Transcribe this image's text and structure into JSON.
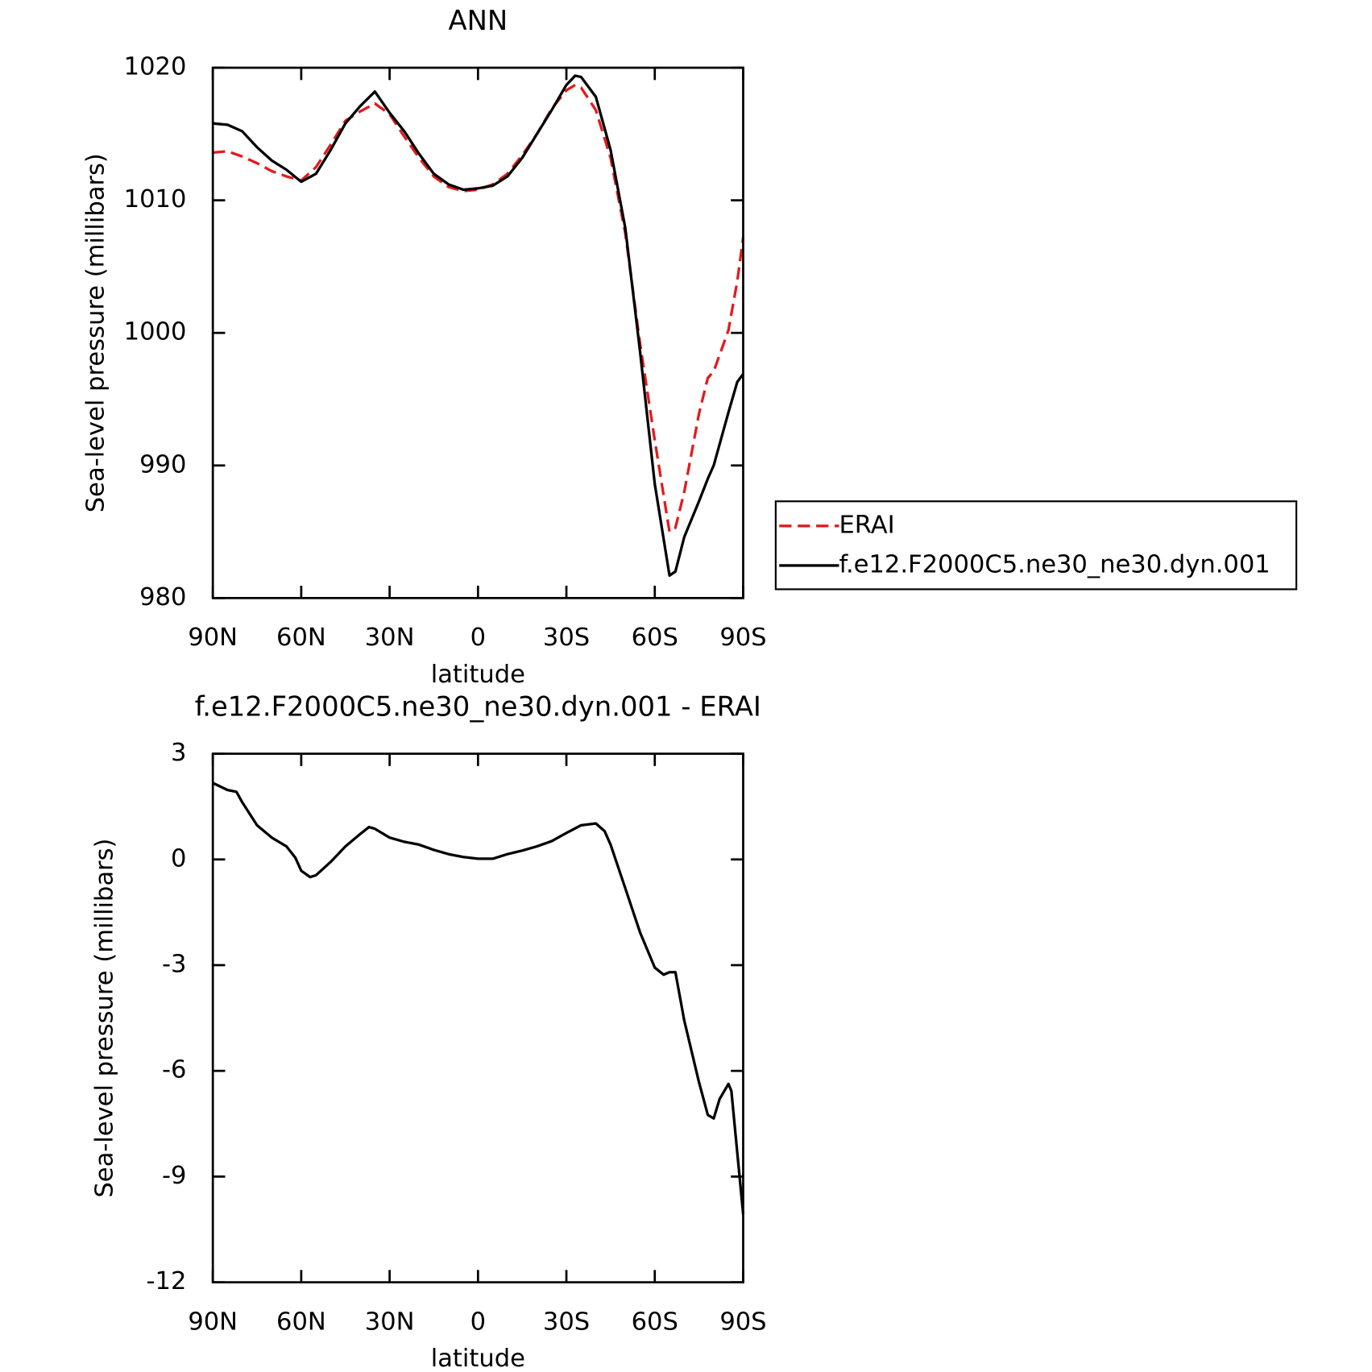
{
  "chart_data": [
    {
      "type": "line",
      "title": "ANN",
      "xlabel": "latitude",
      "ylabel": "Sea-level pressure (millibars)",
      "x": [
        90,
        85,
        80,
        75,
        70,
        65,
        60,
        55,
        50,
        45,
        40,
        35,
        30,
        25,
        20,
        15,
        10,
        5,
        0,
        -5,
        -10,
        -15,
        -20,
        -25,
        -30,
        -33,
        -35,
        -40,
        -45,
        -50,
        -55,
        -60,
        -65,
        -67,
        -70,
        -75,
        -78,
        -80,
        -85,
        -88,
        -90
      ],
      "series": [
        {
          "name": "ERAI",
          "color": "#e41a1c",
          "linestyle": "dashed",
          "values": [
            1013.6,
            1013.7,
            1013.3,
            1012.8,
            1012.2,
            1011.8,
            1011.5,
            1012.5,
            1014.2,
            1016.0,
            1016.7,
            1017.3,
            1016.5,
            1014.8,
            1013.2,
            1011.8,
            1011.0,
            1010.7,
            1010.8,
            1011.2,
            1012.0,
            1013.4,
            1015.0,
            1016.9,
            1018.3,
            1018.7,
            1018.5,
            1016.8,
            1013.2,
            1007.5,
            999.2,
            991.9,
            985.0,
            985.3,
            988.0,
            993.9,
            996.6,
            997.1,
            1000.2,
            1003.9,
            1007.2
          ]
        },
        {
          "name": "f.e12.F2000C5.ne30_ne30.dyn.001",
          "color": "#000000",
          "linestyle": "solid",
          "values": [
            1015.8,
            1015.7,
            1015.2,
            1014.0,
            1013.0,
            1012.3,
            1011.4,
            1012.0,
            1013.8,
            1015.8,
            1017.1,
            1018.2,
            1016.6,
            1015.2,
            1013.5,
            1012.0,
            1011.2,
            1010.8,
            1010.9,
            1011.1,
            1011.8,
            1013.2,
            1015.0,
            1016.8,
            1018.7,
            1019.4,
            1019.3,
            1017.8,
            1013.8,
            1007.9,
            998.6,
            988.6,
            981.7,
            982.0,
            984.6,
            987.3,
            989.0,
            990.0,
            994.0,
            996.3,
            996.9
          ]
        }
      ],
      "xlim": [
        90,
        -90
      ],
      "xticks": [
        {
          "value": 90,
          "label": "90N"
        },
        {
          "value": 60,
          "label": "60N"
        },
        {
          "value": 30,
          "label": "30N"
        },
        0,
        {
          "value": -30,
          "label": "30S"
        },
        {
          "value": -60,
          "label": "60S"
        },
        {
          "value": -90,
          "label": "90S"
        }
      ],
      "ylim": [
        980,
        1020
      ],
      "yticks": [
        980,
        990,
        1000,
        1010,
        1020
      ],
      "legend": "right"
    },
    {
      "type": "line",
      "title": "f.e12.F2000C5.ne30_ne30.dyn.001 - ERAI",
      "xlabel": "latitude",
      "ylabel": "Sea-level pressure (millibars)",
      "x": [
        90,
        85,
        82,
        80,
        75,
        70,
        65,
        62,
        60,
        57,
        55,
        50,
        45,
        40,
        37,
        35,
        30,
        25,
        20,
        15,
        10,
        5,
        0,
        -5,
        -10,
        -15,
        -20,
        -25,
        -30,
        -35,
        -40,
        -43,
        -45,
        -50,
        -55,
        -60,
        -63,
        -65,
        -67,
        -70,
        -75,
        -78,
        -80,
        -82,
        -85,
        -86,
        -88,
        -90
      ],
      "values": [
        2.17,
        1.97,
        1.92,
        1.62,
        0.97,
        0.62,
        0.37,
        0.05,
        -0.32,
        -0.5,
        -0.45,
        -0.07,
        0.37,
        0.72,
        0.92,
        0.87,
        0.62,
        0.5,
        0.42,
        0.27,
        0.15,
        0.07,
        0.02,
        0.02,
        0.15,
        0.25,
        0.37,
        0.52,
        0.75,
        0.97,
        1.02,
        0.8,
        0.42,
        -0.82,
        -2.07,
        -3.07,
        -3.27,
        -3.2,
        -3.2,
        -4.57,
        -6.32,
        -7.25,
        -7.35,
        -6.8,
        -6.37,
        -6.57,
        -8.32,
        -10.07
      ],
      "color": "#000000",
      "xlim": [
        90,
        -90
      ],
      "xticks": [
        {
          "value": 90,
          "label": "90N"
        },
        {
          "value": 60,
          "label": "60N"
        },
        {
          "value": 30,
          "label": "30N"
        },
        0,
        {
          "value": -30,
          "label": "30S"
        },
        {
          "value": -60,
          "label": "60S"
        },
        {
          "value": -90,
          "label": "90S"
        }
      ],
      "ylim": [
        -12,
        3
      ],
      "yticks": [
        -12,
        -9,
        -6,
        -3,
        0,
        3
      ]
    }
  ]
}
